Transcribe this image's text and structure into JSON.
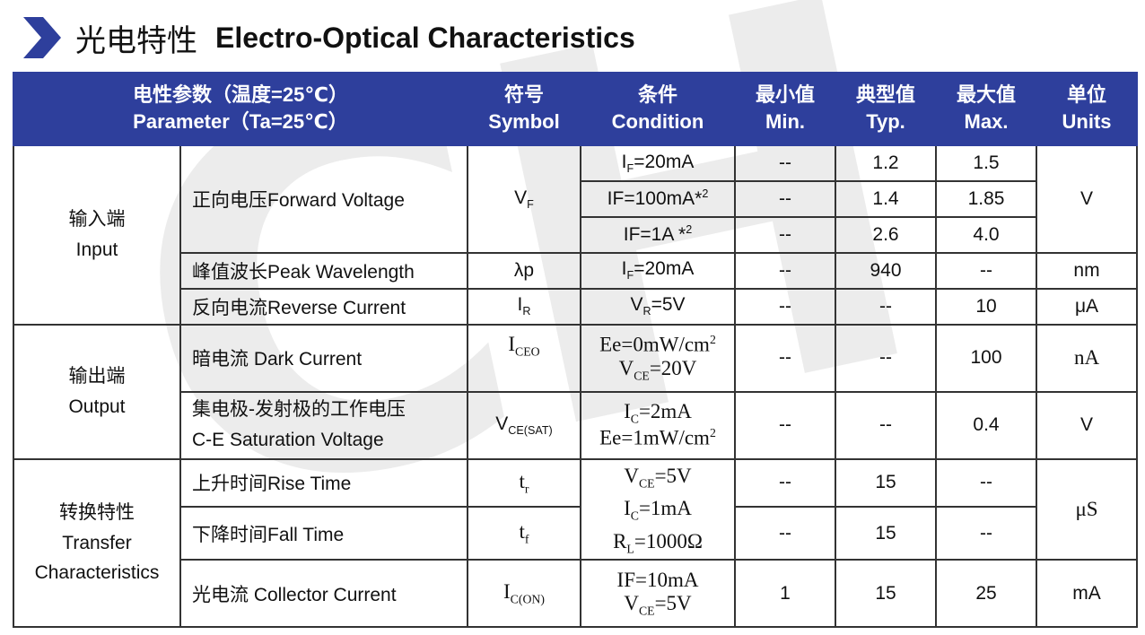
{
  "title": {
    "cn": "光电特性",
    "en": "Electro-Optical Characteristics"
  },
  "header": {
    "param": {
      "cn": "电性参数（温度=25℃）",
      "en": "Parameter（Ta=25℃）"
    },
    "symbol": {
      "cn": "符号",
      "en": "Symbol"
    },
    "condition": {
      "cn": "条件",
      "en": "Condition"
    },
    "min": {
      "cn": "最小值",
      "en": "Min."
    },
    "typ": {
      "cn": "典型值",
      "en": "Typ."
    },
    "max": {
      "cn": "最大值",
      "en": "Max."
    },
    "units": {
      "cn": "单位",
      "en": "Units"
    }
  },
  "groups": {
    "input": {
      "cn": "输入端",
      "en": "Input"
    },
    "output": {
      "cn": "输出端",
      "en": "Output"
    },
    "transfer": {
      "cn": "转换特性",
      "en1": "Transfer",
      "en2": "Characteristics"
    }
  },
  "rows": {
    "fv": {
      "param": "正向电压Forward Voltage",
      "symbol": "V",
      "symbol_sub": "F",
      "unit": "V",
      "conds": [
        {
          "cond": "I",
          "cond_sub": "F",
          "cond_rest": "=20mA",
          "min": "--",
          "typ": "1.2",
          "max": "1.5"
        },
        {
          "cond": "IF=100mA*",
          "cond_sup": "2",
          "min": "--",
          "typ": "1.4",
          "max": "1.85"
        },
        {
          "cond": "IF=1A *",
          "cond_sup": "2",
          "min": "--",
          "typ": "2.6",
          "max": "4.0"
        }
      ]
    },
    "pw": {
      "param": "峰值波长Peak Wavelength",
      "symbol": "λp",
      "cond": "I",
      "cond_sub": "F",
      "cond_rest": "=20mA",
      "min": "--",
      "typ": "940",
      "max": "--",
      "unit": "nm"
    },
    "rc": {
      "param": "反向电流Reverse Current",
      "symbol": "I",
      "symbol_sub": "R",
      "cond": "V",
      "cond_sub": "R",
      "cond_rest": "=5V",
      "min": "--",
      "typ": "--",
      "max": "10",
      "unit": "μA"
    },
    "dc": {
      "param": "暗电流  Dark Current",
      "symbol": "I",
      "symbol_sub": "CEO",
      "cond1": "Ee=0mW/cm",
      "cond1_sup": "2",
      "cond2": "V",
      "cond2_sub": "CE",
      "cond2_rest": "=20V",
      "min": "--",
      "typ": "--",
      "max": "100",
      "unit": "nA"
    },
    "sat": {
      "param_cn": "集电极-发射极的工作电压",
      "param_en": "C-E Saturation Voltage",
      "symbol": "V",
      "symbol_sub": "CE(SAT)",
      "cond1": "I",
      "cond1_sub": "C",
      "cond1_rest": "=2mA",
      "cond2": "Ee=1mW/cm",
      "cond2_sup": "2",
      "min": "--",
      "typ": "--",
      "max": "0.4",
      "unit": "V"
    },
    "rise": {
      "param": "上升时间Rise Time",
      "symbol": "t",
      "symbol_sub": "r",
      "min": "--",
      "typ": "15",
      "max": "--"
    },
    "fall": {
      "param": "下降时间Fall Time",
      "symbol": "t",
      "symbol_sub": "f",
      "min": "--",
      "typ": "15",
      "max": "--"
    },
    "switch_cond": {
      "c1": "V",
      "c1_sub": "CE",
      "c1_rest": "=5V",
      "c2": "I",
      "c2_sub": "C",
      "c2_rest": "=1mA",
      "c3": "R",
      "c3_sub": "L",
      "c3_rest": "=1000Ω",
      "unit": "μS"
    },
    "cc": {
      "param": "光电流  Collector Current",
      "symbol": "I",
      "symbol_sub": "C(ON)",
      "cond1": "IF=10mA",
      "cond2": "V",
      "cond2_sub": "CE",
      "cond2_rest": "=5V",
      "min": "1",
      "typ": "15",
      "max": "25",
      "unit": "mA"
    }
  },
  "colors": {
    "header_bg": "#2e3f9c",
    "border": "#333333"
  }
}
